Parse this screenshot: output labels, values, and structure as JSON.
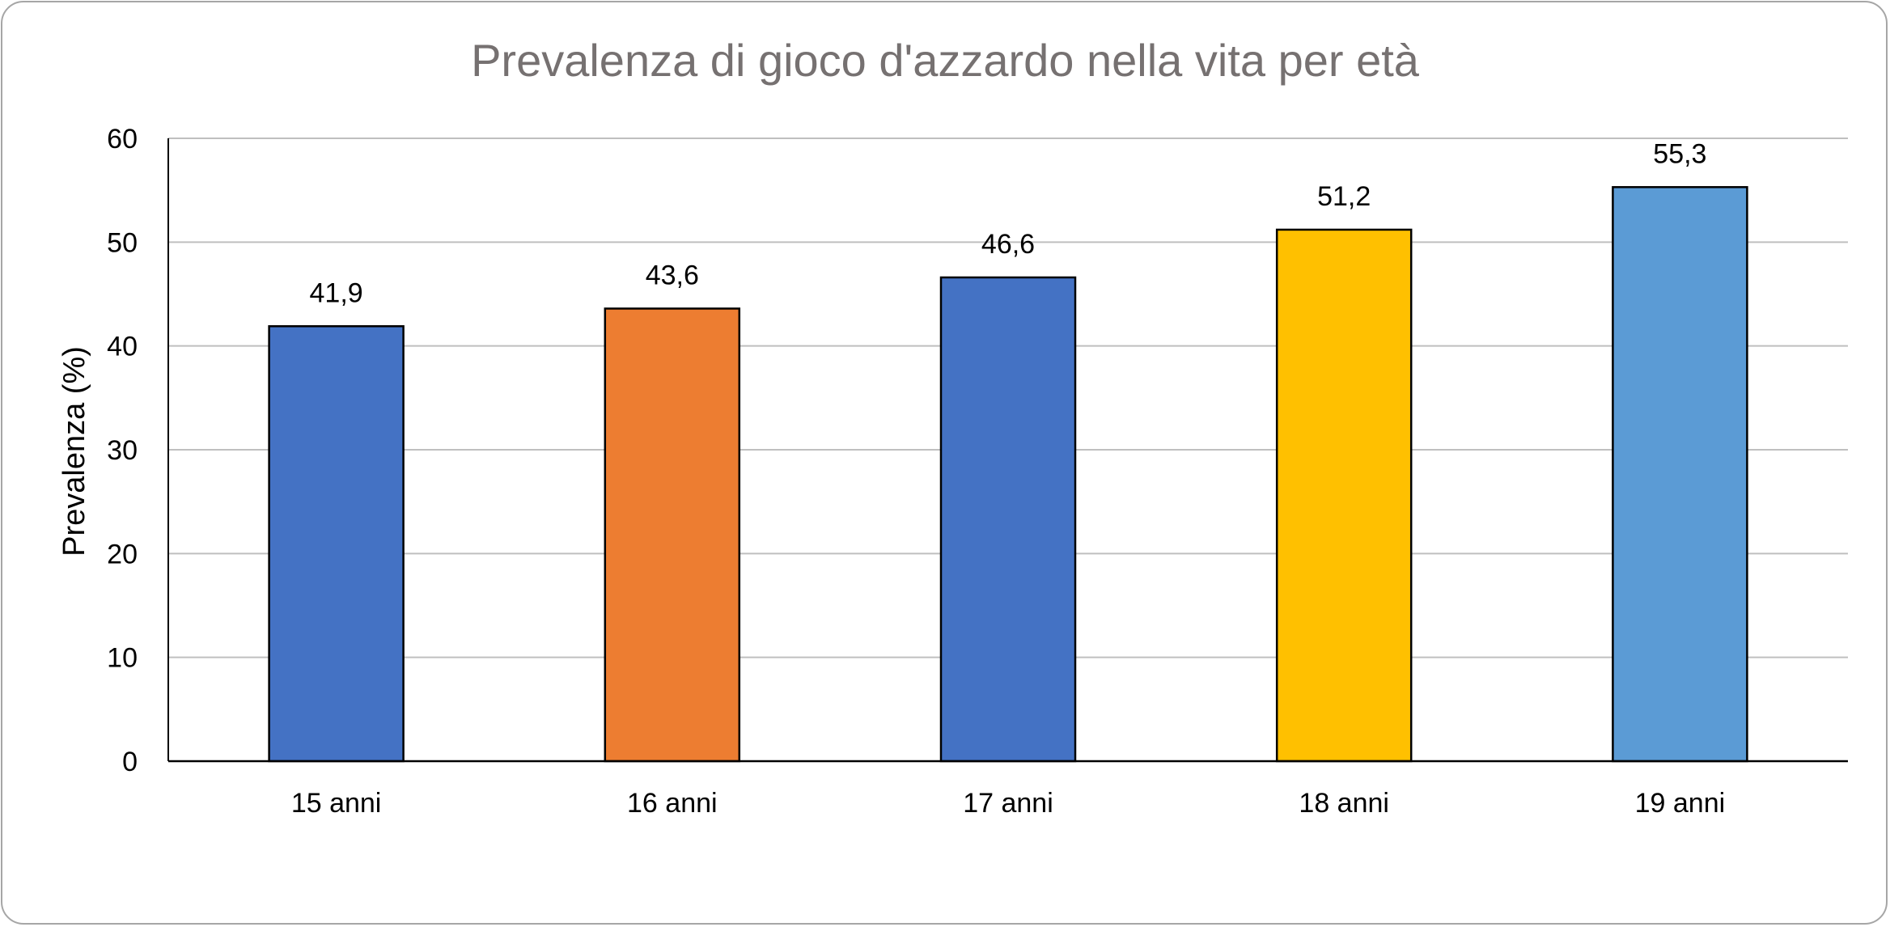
{
  "chart_data": {
    "type": "bar",
    "title": "Prevalenza di gioco d'azzardo nella vita per età",
    "xlabel": "",
    "ylabel": "Prevalenza (%)",
    "categories": [
      "15 anni",
      "16 anni",
      "17 anni",
      "18 anni",
      "19 anni"
    ],
    "values": [
      41.9,
      43.6,
      46.6,
      51.2,
      55.3
    ],
    "value_labels": [
      "41,9",
      "43,6",
      "46,6",
      "51,2",
      "55,3"
    ],
    "bar_colors": [
      "#4472c4",
      "#ed7d31",
      "#4472c4",
      "#ffc000",
      "#5b9bd5"
    ],
    "ylim": [
      0,
      60
    ],
    "yticks": [
      0,
      10,
      20,
      30,
      40,
      50,
      60
    ],
    "grid": true,
    "legend": "none"
  }
}
